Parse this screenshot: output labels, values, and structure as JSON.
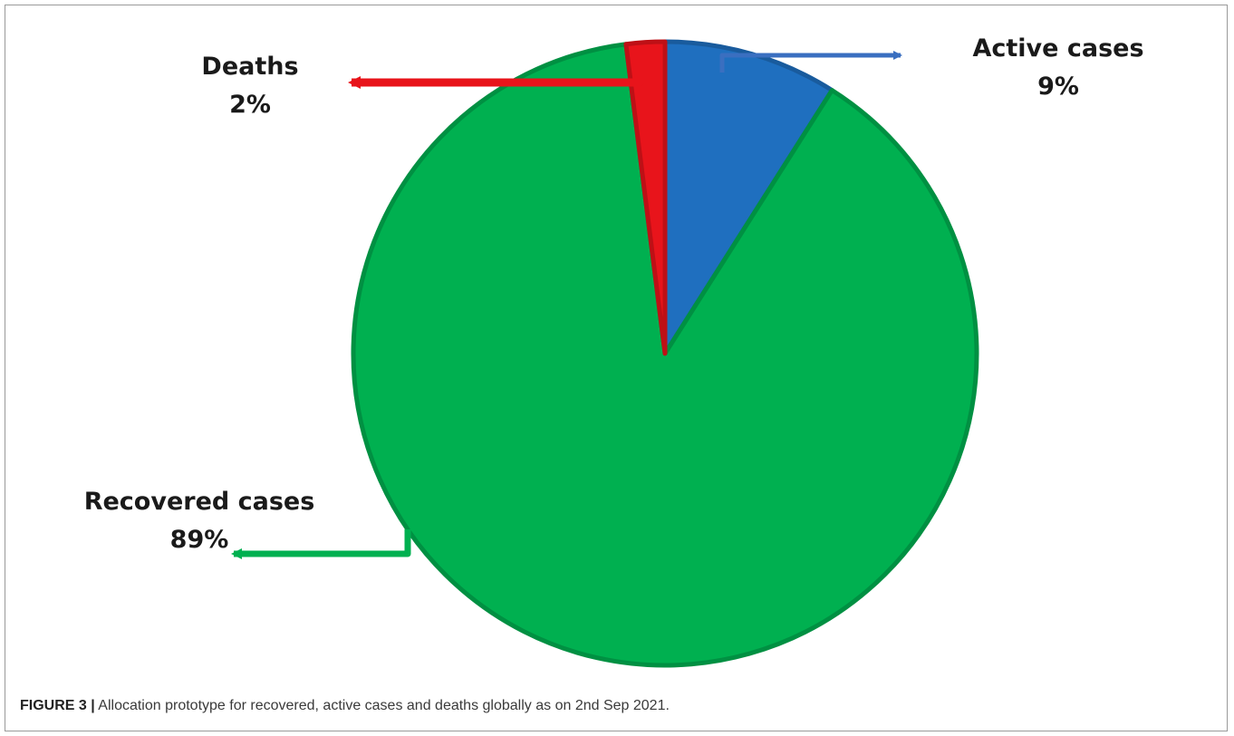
{
  "chart_data": {
    "type": "pie",
    "slices": [
      {
        "label": "Active cases",
        "value": 9,
        "value_label": "9%",
        "color": "#1f6fbf"
      },
      {
        "label": "Recovered cases",
        "value": 89,
        "value_label": "89%",
        "color": "#00b050"
      },
      {
        "label": "Deaths",
        "value": 2,
        "value_label": "2%",
        "color": "#e8141b"
      }
    ],
    "title": "",
    "legend": "none"
  },
  "caption": {
    "figure_label": "FIGURE 3 |",
    "text": "Allocation prototype for recovered, active cases and deaths globally as on 2nd Sep 2021."
  }
}
